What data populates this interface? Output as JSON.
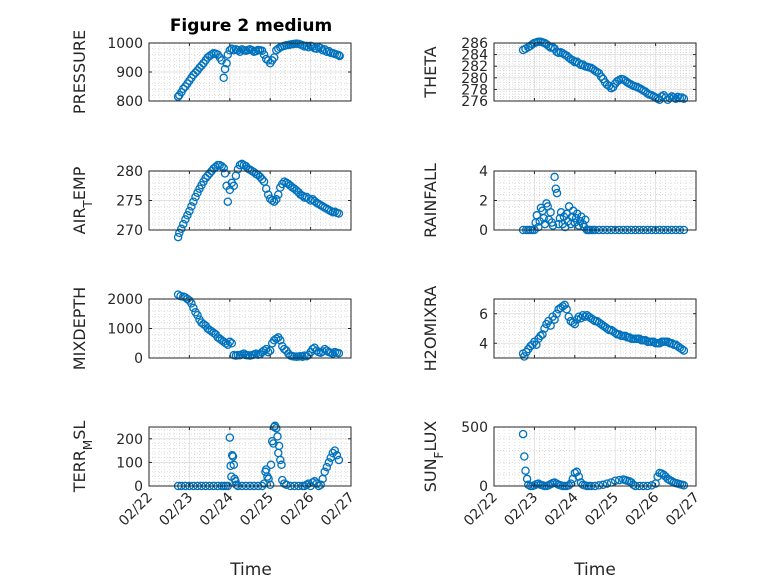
{
  "figure": {
    "title": "Figure 2 medium",
    "xlabel": "Time"
  },
  "chart_data": [
    {
      "type": "scatter",
      "ylabel": "PRESSURE",
      "xlabel": "",
      "ylim": [
        800,
        1000
      ],
      "yticks": [
        "800",
        "900",
        "1000"
      ],
      "show_x_ticklabels": false,
      "x": [
        22.72,
        22.75,
        22.8,
        22.85,
        22.9,
        22.95,
        23.0,
        23.05,
        23.1,
        23.15,
        23.2,
        23.25,
        23.3,
        23.35,
        23.4,
        23.45,
        23.5,
        23.55,
        23.6,
        23.65,
        23.7,
        23.75,
        23.8,
        23.85,
        23.88,
        23.92,
        23.95,
        24.0,
        24.05,
        24.1,
        24.15,
        24.2,
        24.25,
        24.3,
        24.35,
        24.4,
        24.45,
        24.5,
        24.55,
        24.6,
        24.65,
        24.7,
        24.75,
        24.8,
        24.85,
        24.9,
        24.95,
        25.0,
        25.05,
        25.1,
        25.15,
        25.2,
        25.25,
        25.3,
        25.35,
        25.4,
        25.45,
        25.5,
        25.55,
        25.6,
        25.65,
        25.7,
        25.75,
        25.8,
        25.85,
        25.9,
        25.95,
        26.0,
        26.05,
        26.1,
        26.15,
        26.2,
        26.25,
        26.3,
        26.35,
        26.4,
        26.45,
        26.5,
        26.55,
        26.6,
        26.65,
        26.7,
        26.72
      ],
      "y": [
        815,
        820,
        830,
        842,
        850,
        860,
        870,
        880,
        890,
        898,
        905,
        915,
        922,
        930,
        940,
        950,
        955,
        960,
        965,
        963,
        960,
        950,
        940,
        880,
        910,
        930,
        960,
        975,
        980,
        975,
        978,
        975,
        970,
        978,
        975,
        973,
        976,
        978,
        975,
        970,
        972,
        976,
        975,
        973,
        960,
        945,
        940,
        930,
        940,
        950,
        975,
        980,
        985,
        988,
        990,
        992,
        993,
        995,
        996,
        997,
        998,
        997,
        995,
        992,
        988,
        990,
        985,
        990,
        988,
        982,
        980,
        985,
        982,
        975,
        978,
        970,
        972,
        966,
        965,
        962,
        960,
        958,
        955
      ]
    },
    {
      "type": "scatter",
      "ylabel": "THETA",
      "xlabel": "",
      "ylim": [
        276,
        286
      ],
      "yticks": [
        "276",
        "278",
        "280",
        "282",
        "284",
        "286"
      ],
      "show_x_ticklabels": false,
      "x": [
        22.72,
        22.78,
        22.85,
        22.9,
        22.95,
        23.0,
        23.05,
        23.1,
        23.15,
        23.2,
        23.25,
        23.3,
        23.35,
        23.4,
        23.45,
        23.5,
        23.55,
        23.6,
        23.65,
        23.7,
        23.75,
        23.8,
        23.85,
        23.9,
        23.95,
        24.0,
        24.05,
        24.1,
        24.15,
        24.2,
        24.25,
        24.3,
        24.35,
        24.4,
        24.45,
        24.5,
        24.55,
        24.6,
        24.65,
        24.7,
        24.75,
        24.8,
        24.85,
        24.9,
        24.95,
        25.0,
        25.05,
        25.1,
        25.15,
        25.2,
        25.25,
        25.3,
        25.35,
        25.4,
        25.45,
        25.5,
        25.55,
        25.6,
        25.65,
        25.7,
        25.75,
        25.8,
        25.85,
        25.9,
        25.95,
        26.0,
        26.05,
        26.1,
        26.15,
        26.2,
        26.25,
        26.3,
        26.35,
        26.4,
        26.45,
        26.5,
        26.55,
        26.6,
        26.65,
        26.7
      ],
      "y": [
        284.8,
        285.0,
        285.3,
        285.5,
        285.8,
        286.0,
        286.1,
        286.2,
        286.2,
        286.1,
        286.0,
        285.8,
        285.5,
        285.2,
        285.3,
        285.0,
        284.5,
        284.3,
        284.4,
        284.2,
        284.0,
        283.8,
        283.5,
        283.2,
        283.0,
        282.7,
        282.8,
        282.5,
        282.2,
        282.3,
        282.0,
        281.9,
        281.8,
        281.7,
        281.5,
        281.2,
        281.0,
        280.8,
        280.2,
        279.8,
        279.2,
        278.8,
        278.6,
        278.2,
        278.4,
        279.0,
        279.4,
        279.6,
        279.8,
        279.7,
        279.5,
        279.2,
        279.0,
        278.8,
        278.6,
        278.5,
        278.4,
        278.2,
        278.0,
        277.8,
        277.6,
        277.3,
        277.1,
        277.0,
        276.8,
        276.6,
        276.4,
        276.2,
        276.8,
        277.0,
        276.6,
        276.2,
        276.5,
        276.8,
        276.6,
        276.4,
        276.7,
        276.5,
        276.6,
        276.4
      ]
    },
    {
      "type": "scatter",
      "ylabel": "AIR_TEMP",
      "xlabel": "",
      "ylim": [
        270,
        280
      ],
      "yticks": [
        "270",
        "275",
        "280"
      ],
      "show_x_ticklabels": false,
      "x": [
        22.72,
        22.75,
        22.8,
        22.85,
        22.9,
        22.95,
        23.0,
        23.05,
        23.1,
        23.15,
        23.2,
        23.25,
        23.3,
        23.35,
        23.4,
        23.45,
        23.5,
        23.55,
        23.6,
        23.65,
        23.7,
        23.75,
        23.8,
        23.85,
        23.88,
        23.92,
        23.95,
        24.0,
        24.05,
        24.1,
        24.15,
        24.2,
        24.25,
        24.3,
        24.35,
        24.4,
        24.45,
        24.5,
        24.55,
        24.6,
        24.65,
        24.7,
        24.75,
        24.8,
        24.85,
        24.9,
        24.95,
        25.0,
        25.05,
        25.1,
        25.15,
        25.2,
        25.25,
        25.3,
        25.35,
        25.4,
        25.45,
        25.5,
        25.55,
        25.6,
        25.65,
        25.7,
        25.75,
        25.8,
        25.85,
        25.9,
        25.95,
        26.0,
        26.05,
        26.1,
        26.15,
        26.2,
        26.25,
        26.3,
        26.35,
        26.4,
        26.45,
        26.5,
        26.55,
        26.6,
        26.65,
        26.7
      ],
      "y": [
        268.8,
        269.5,
        270.2,
        271.0,
        271.8,
        272.5,
        273.2,
        274.0,
        274.8,
        275.6,
        276.3,
        277.0,
        277.6,
        278.2,
        278.8,
        279.2,
        279.6,
        280.0,
        280.4,
        280.7,
        281.0,
        281.0,
        280.8,
        280.5,
        279.6,
        277.5,
        274.8,
        276.8,
        278.0,
        277.5,
        279.2,
        280.3,
        281.0,
        281.2,
        281.0,
        280.8,
        280.4,
        280.2,
        280.0,
        279.8,
        279.5,
        279.3,
        279.0,
        278.6,
        278.2,
        277.0,
        276.0,
        275.3,
        275.0,
        274.8,
        275.2,
        276.0,
        277.2,
        277.8,
        278.2,
        278.0,
        277.8,
        277.5,
        277.2,
        277.0,
        276.7,
        276.4,
        276.0,
        275.8,
        275.5,
        275.6,
        275.3,
        275.0,
        275.2,
        274.9,
        274.6,
        274.4,
        274.2,
        274.0,
        273.8,
        273.6,
        273.4,
        273.2,
        273.0,
        273.1,
        272.9,
        272.8
      ]
    },
    {
      "type": "scatter",
      "ylabel": "RAINFALL",
      "xlabel": "",
      "ylim": [
        0,
        4
      ],
      "yticks": [
        "0",
        "2",
        "4"
      ],
      "show_x_ticklabels": false,
      "x": [
        22.72,
        22.8,
        22.85,
        22.9,
        22.95,
        23.0,
        23.03,
        23.06,
        23.1,
        23.13,
        23.16,
        23.2,
        23.23,
        23.26,
        23.3,
        23.33,
        23.36,
        23.4,
        23.43,
        23.46,
        23.5,
        23.53,
        23.56,
        23.6,
        23.63,
        23.66,
        23.7,
        23.73,
        23.76,
        23.8,
        23.83,
        23.86,
        23.9,
        23.93,
        23.96,
        24.0,
        24.03,
        24.06,
        24.1,
        24.13,
        24.16,
        24.2,
        24.23,
        24.26,
        24.3,
        24.33,
        24.36,
        24.4,
        24.45,
        24.5,
        24.6,
        24.7,
        24.8,
        24.9,
        25.0,
        25.1,
        25.2,
        25.3,
        25.4,
        25.5,
        25.6,
        25.7,
        25.8,
        25.9,
        26.0,
        26.1,
        26.2,
        26.3,
        26.4,
        26.5,
        26.6,
        26.7
      ],
      "y": [
        0,
        0,
        0,
        0,
        0,
        0,
        0.5,
        1.0,
        0.2,
        0.6,
        1.5,
        1.3,
        0.8,
        0.4,
        1.8,
        1.6,
        0.7,
        1.2,
        0.5,
        0.3,
        3.6,
        2.8,
        2.5,
        0.4,
        0.8,
        1.2,
        0.4,
        0.9,
        0.2,
        1.1,
        0.6,
        1.6,
        0.4,
        0.9,
        1.3,
        0.5,
        0.8,
        1.1,
        0.3,
        0.6,
        0.9,
        0.4,
        0.2,
        0.7,
        0,
        0,
        0,
        0,
        0,
        0,
        0,
        0,
        0,
        0,
        0,
        0,
        0,
        0,
        0,
        0,
        0,
        0,
        0,
        0,
        0,
        0,
        0,
        0,
        0,
        0,
        0,
        0
      ]
    },
    {
      "type": "scatter",
      "ylabel": "MIXDEPTH",
      "xlabel": "",
      "ylim": [
        0,
        2000
      ],
      "yticks": [
        "0",
        "1000",
        "2000"
      ],
      "show_x_ticklabels": false,
      "x": [
        22.72,
        22.78,
        22.85,
        22.9,
        22.95,
        23.0,
        23.05,
        23.1,
        23.15,
        23.2,
        23.25,
        23.3,
        23.35,
        23.4,
        23.45,
        23.5,
        23.55,
        23.6,
        23.65,
        23.7,
        23.75,
        23.8,
        23.85,
        23.9,
        23.95,
        24.0,
        24.05,
        24.1,
        24.15,
        24.2,
        24.25,
        24.3,
        24.35,
        24.4,
        24.45,
        24.5,
        24.55,
        24.6,
        24.65,
        24.7,
        24.75,
        24.8,
        24.85,
        24.9,
        24.95,
        25.0,
        25.05,
        25.1,
        25.15,
        25.2,
        25.25,
        25.3,
        25.35,
        25.4,
        25.45,
        25.5,
        25.55,
        25.6,
        25.65,
        25.7,
        25.75,
        25.8,
        25.85,
        25.9,
        25.95,
        26.0,
        26.05,
        26.1,
        26.15,
        26.2,
        26.25,
        26.3,
        26.35,
        26.4,
        26.45,
        26.5,
        26.55,
        26.6,
        26.65,
        26.7
      ],
      "y": [
        2150,
        2100,
        2080,
        2050,
        2000,
        1950,
        1850,
        1700,
        1550,
        1450,
        1300,
        1200,
        1150,
        1100,
        1000,
        950,
        900,
        850,
        800,
        700,
        650,
        600,
        550,
        500,
        450,
        550,
        500,
        100,
        80,
        100,
        90,
        120,
        150,
        100,
        90,
        80,
        100,
        120,
        150,
        110,
        130,
        200,
        250,
        300,
        200,
        250,
        500,
        600,
        650,
        700,
        600,
        400,
        300,
        250,
        150,
        80,
        60,
        50,
        40,
        50,
        60,
        40,
        80,
        60,
        100,
        200,
        300,
        350,
        250,
        200,
        180,
        220,
        300,
        250,
        200,
        180,
        150,
        200,
        180,
        160
      ]
    },
    {
      "type": "scatter",
      "ylabel": "H2OMIXRA",
      "xlabel": "",
      "ylim": [
        3,
        7
      ],
      "yticks": [
        "4",
        "6"
      ],
      "show_x_ticklabels": false,
      "x": [
        22.72,
        22.75,
        22.8,
        22.85,
        22.9,
        22.95,
        23.0,
        23.05,
        23.1,
        23.15,
        23.2,
        23.25,
        23.3,
        23.35,
        23.4,
        23.45,
        23.5,
        23.55,
        23.6,
        23.65,
        23.7,
        23.75,
        23.8,
        23.85,
        23.9,
        23.95,
        24.0,
        24.05,
        24.1,
        24.15,
        24.2,
        24.25,
        24.3,
        24.35,
        24.4,
        24.45,
        24.5,
        24.55,
        24.6,
        24.65,
        24.7,
        24.75,
        24.8,
        24.85,
        24.9,
        24.95,
        25.0,
        25.05,
        25.1,
        25.15,
        25.2,
        25.25,
        25.3,
        25.35,
        25.4,
        25.45,
        25.5,
        25.55,
        25.6,
        25.65,
        25.7,
        25.75,
        25.8,
        25.85,
        25.9,
        25.95,
        26.0,
        26.05,
        26.1,
        26.15,
        26.2,
        26.25,
        26.3,
        26.35,
        26.4,
        26.45,
        26.5,
        26.55,
        26.6,
        26.65,
        26.7
      ],
      "y": [
        3.3,
        3.1,
        3.4,
        3.6,
        3.8,
        3.9,
        4.1,
        3.9,
        4.3,
        4.5,
        4.6,
        5.0,
        5.3,
        5.5,
        5.2,
        5.8,
        5.6,
        6.0,
        6.3,
        6.4,
        6.5,
        6.6,
        6.3,
        5.8,
        5.5,
        5.4,
        5.3,
        5.6,
        5.8,
        5.7,
        5.9,
        5.8,
        5.9,
        5.8,
        5.7,
        5.6,
        5.5,
        5.5,
        5.4,
        5.3,
        5.2,
        5.1,
        5.0,
        4.9,
        4.9,
        4.8,
        4.7,
        4.6,
        4.6,
        4.5,
        4.5,
        4.5,
        4.4,
        4.4,
        4.3,
        4.3,
        4.3,
        4.3,
        4.3,
        4.2,
        4.2,
        4.2,
        4.1,
        4.1,
        4.1,
        4.1,
        4.0,
        4.0,
        4.0,
        4.1,
        4.1,
        4.1,
        4.1,
        4.0,
        4.0,
        3.9,
        3.9,
        3.8,
        3.7,
        3.6,
        3.5
      ]
    },
    {
      "type": "scatter",
      "ylabel": "TERR_MSL",
      "xlabel": "Time",
      "ylim": [
        0,
        250
      ],
      "yticks": [
        "0",
        "100",
        "200"
      ],
      "show_x_ticklabels": true,
      "x": [
        22.72,
        22.8,
        22.9,
        23.0,
        23.1,
        23.2,
        23.3,
        23.4,
        23.5,
        23.6,
        23.7,
        23.8,
        23.85,
        23.9,
        23.95,
        24.0,
        24.02,
        24.04,
        24.06,
        24.08,
        24.1,
        24.12,
        24.14,
        24.16,
        24.2,
        24.3,
        24.4,
        24.5,
        24.6,
        24.7,
        24.8,
        24.85,
        24.88,
        24.9,
        24.93,
        24.96,
        25.0,
        25.02,
        25.05,
        25.08,
        25.1,
        25.12,
        25.15,
        25.18,
        25.2,
        25.22,
        25.25,
        25.28,
        25.3,
        25.35,
        25.4,
        25.5,
        25.6,
        25.7,
        25.8,
        25.85,
        25.9,
        25.95,
        26.0,
        26.05,
        26.1,
        26.15,
        26.2,
        26.25,
        26.3,
        26.35,
        26.4,
        26.45,
        26.5,
        26.55,
        26.6,
        26.65,
        26.7
      ],
      "y": [
        0,
        0,
        0,
        0,
        0,
        0,
        0,
        0,
        0,
        0,
        0,
        0,
        0,
        0,
        0,
        205,
        85,
        40,
        130,
        125,
        90,
        30,
        20,
        5,
        0,
        0,
        0,
        0,
        0,
        0,
        0,
        10,
        60,
        70,
        40,
        30,
        5,
        90,
        190,
        180,
        250,
        255,
        245,
        210,
        140,
        170,
        110,
        90,
        25,
        10,
        5,
        0,
        0,
        0,
        0,
        0,
        5,
        10,
        0,
        15,
        20,
        10,
        0,
        5,
        30,
        60,
        80,
        100,
        120,
        140,
        150,
        130,
        110
      ]
    },
    {
      "type": "scatter",
      "ylabel": "SUN_FLUX",
      "xlabel": "Time",
      "ylim": [
        0,
        500
      ],
      "yticks": [
        "0",
        "500"
      ],
      "show_x_ticklabels": true,
      "x": [
        22.72,
        22.75,
        22.78,
        22.82,
        22.85,
        22.9,
        22.95,
        23.0,
        23.05,
        23.1,
        23.15,
        23.2,
        23.25,
        23.3,
        23.35,
        23.4,
        23.45,
        23.5,
        23.55,
        23.6,
        23.65,
        23.7,
        23.75,
        23.8,
        23.85,
        23.9,
        23.95,
        24.0,
        24.05,
        24.1,
        24.15,
        24.2,
        24.25,
        24.3,
        24.35,
        24.4,
        24.5,
        24.6,
        24.7,
        24.8,
        24.9,
        25.0,
        25.1,
        25.2,
        25.25,
        25.3,
        25.35,
        25.4,
        25.45,
        25.5,
        25.6,
        25.7,
        25.8,
        25.9,
        26.0,
        26.05,
        26.1,
        26.15,
        26.2,
        26.25,
        26.3,
        26.35,
        26.4,
        26.45,
        26.5,
        26.55,
        26.6,
        26.65,
        26.7
      ],
      "y": [
        440,
        250,
        130,
        60,
        10,
        0,
        0,
        5,
        15,
        20,
        10,
        5,
        0,
        0,
        5,
        15,
        25,
        30,
        20,
        10,
        5,
        0,
        0,
        0,
        5,
        20,
        60,
        110,
        120,
        80,
        30,
        10,
        5,
        0,
        0,
        0,
        0,
        5,
        10,
        20,
        30,
        45,
        50,
        55,
        50,
        45,
        40,
        30,
        10,
        0,
        0,
        0,
        0,
        5,
        20,
        80,
        110,
        105,
        95,
        80,
        60,
        50,
        40,
        30,
        25,
        20,
        15,
        10,
        5
      ]
    }
  ],
  "xticks": [
    "02/22",
    "02/23",
    "02/24",
    "02/25",
    "02/26",
    "02/27"
  ],
  "xlim": [
    22,
    27
  ],
  "marker_color": "#0072bd",
  "axes_color": "#262626",
  "grid_color": "#c9c9c9"
}
